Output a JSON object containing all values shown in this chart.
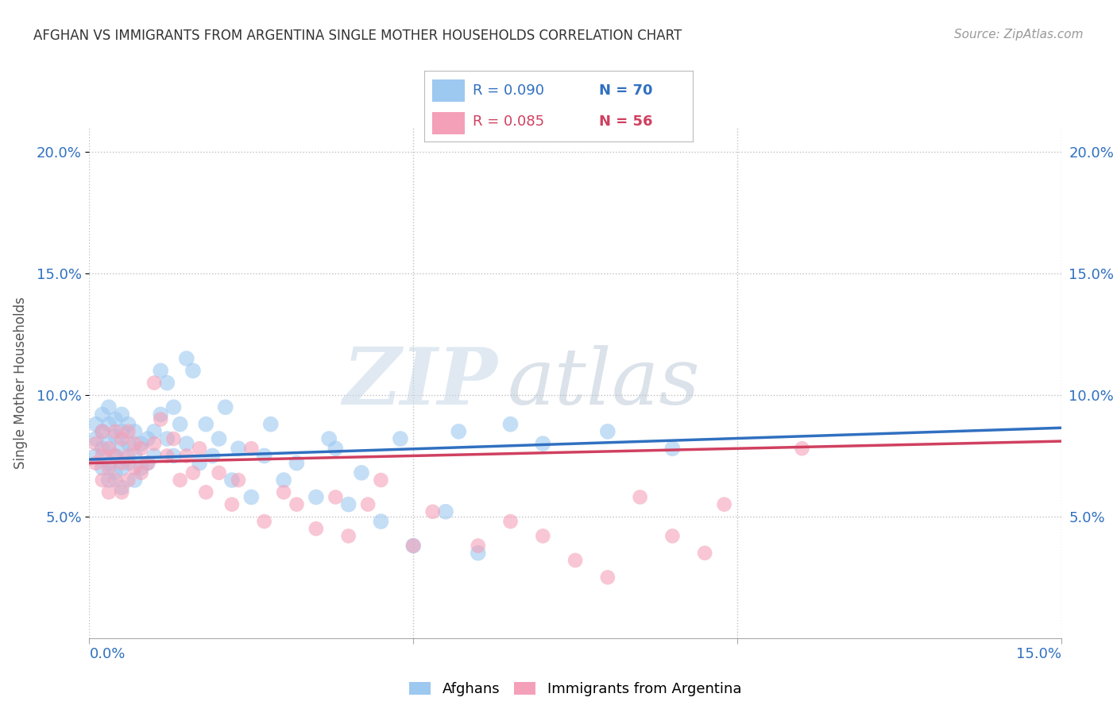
{
  "title": "AFGHAN VS IMMIGRANTS FROM ARGENTINA SINGLE MOTHER HOUSEHOLDS CORRELATION CHART",
  "source": "Source: ZipAtlas.com",
  "ylabel": "Single Mother Households",
  "xlim": [
    0.0,
    0.15
  ],
  "ylim": [
    0.0,
    0.21
  ],
  "yticks": [
    0.05,
    0.1,
    0.15,
    0.2
  ],
  "ytick_labels": [
    "5.0%",
    "10.0%",
    "15.0%",
    "20.0%"
  ],
  "xtick_labels": [
    "0.0%",
    "15.0%"
  ],
  "legend_r_afghan": "R = 0.090",
  "legend_n_afghan": "N = 70",
  "legend_r_argentina": "R = 0.085",
  "legend_n_argentina": "N = 56",
  "color_afghan": "#9DC8F0",
  "color_argentina": "#F4A0B8",
  "color_line_afghan": "#3070C0",
  "color_line_argentina": "#D04060",
  "watermark_zip": "ZIP",
  "watermark_atlas": "atlas",
  "afghan_x": [
    0.001,
    0.001,
    0.001,
    0.002,
    0.002,
    0.002,
    0.002,
    0.003,
    0.003,
    0.003,
    0.003,
    0.003,
    0.004,
    0.004,
    0.004,
    0.004,
    0.005,
    0.005,
    0.005,
    0.005,
    0.005,
    0.006,
    0.006,
    0.006,
    0.007,
    0.007,
    0.007,
    0.008,
    0.008,
    0.009,
    0.009,
    0.01,
    0.01,
    0.011,
    0.011,
    0.012,
    0.012,
    0.013,
    0.013,
    0.014,
    0.015,
    0.015,
    0.016,
    0.017,
    0.018,
    0.019,
    0.02,
    0.021,
    0.022,
    0.023,
    0.025,
    0.027,
    0.028,
    0.03,
    0.032,
    0.035,
    0.037,
    0.038,
    0.04,
    0.042,
    0.045,
    0.048,
    0.05,
    0.055,
    0.057,
    0.06,
    0.065,
    0.07,
    0.08,
    0.09
  ],
  "afghan_y": [
    0.075,
    0.082,
    0.088,
    0.07,
    0.078,
    0.085,
    0.092,
    0.065,
    0.072,
    0.08,
    0.088,
    0.095,
    0.068,
    0.075,
    0.083,
    0.09,
    0.062,
    0.07,
    0.078,
    0.085,
    0.092,
    0.072,
    0.08,
    0.088,
    0.065,
    0.075,
    0.085,
    0.07,
    0.08,
    0.072,
    0.082,
    0.075,
    0.085,
    0.11,
    0.092,
    0.105,
    0.082,
    0.095,
    0.075,
    0.088,
    0.115,
    0.08,
    0.11,
    0.072,
    0.088,
    0.075,
    0.082,
    0.095,
    0.065,
    0.078,
    0.058,
    0.075,
    0.088,
    0.065,
    0.072,
    0.058,
    0.082,
    0.078,
    0.055,
    0.068,
    0.048,
    0.082,
    0.038,
    0.052,
    0.085,
    0.035,
    0.088,
    0.08,
    0.085,
    0.078
  ],
  "argentina_x": [
    0.001,
    0.001,
    0.002,
    0.002,
    0.002,
    0.003,
    0.003,
    0.003,
    0.004,
    0.004,
    0.004,
    0.005,
    0.005,
    0.005,
    0.006,
    0.006,
    0.006,
    0.007,
    0.007,
    0.008,
    0.008,
    0.009,
    0.01,
    0.01,
    0.011,
    0.012,
    0.013,
    0.014,
    0.015,
    0.016,
    0.017,
    0.018,
    0.02,
    0.022,
    0.023,
    0.025,
    0.027,
    0.03,
    0.032,
    0.035,
    0.038,
    0.04,
    0.043,
    0.045,
    0.05,
    0.053,
    0.06,
    0.065,
    0.07,
    0.075,
    0.08,
    0.085,
    0.09,
    0.095,
    0.098,
    0.11
  ],
  "argentina_y": [
    0.072,
    0.08,
    0.065,
    0.075,
    0.085,
    0.06,
    0.07,
    0.078,
    0.065,
    0.075,
    0.085,
    0.06,
    0.072,
    0.082,
    0.065,
    0.075,
    0.085,
    0.07,
    0.08,
    0.068,
    0.078,
    0.072,
    0.105,
    0.08,
    0.09,
    0.075,
    0.082,
    0.065,
    0.075,
    0.068,
    0.078,
    0.06,
    0.068,
    0.055,
    0.065,
    0.078,
    0.048,
    0.06,
    0.055,
    0.045,
    0.058,
    0.042,
    0.055,
    0.065,
    0.038,
    0.052,
    0.038,
    0.048,
    0.042,
    0.032,
    0.025,
    0.058,
    0.042,
    0.035,
    0.055,
    0.078
  ],
  "regression_afghan": [
    0.0735,
    0.0865
  ],
  "regression_argentina": [
    0.072,
    0.081
  ]
}
